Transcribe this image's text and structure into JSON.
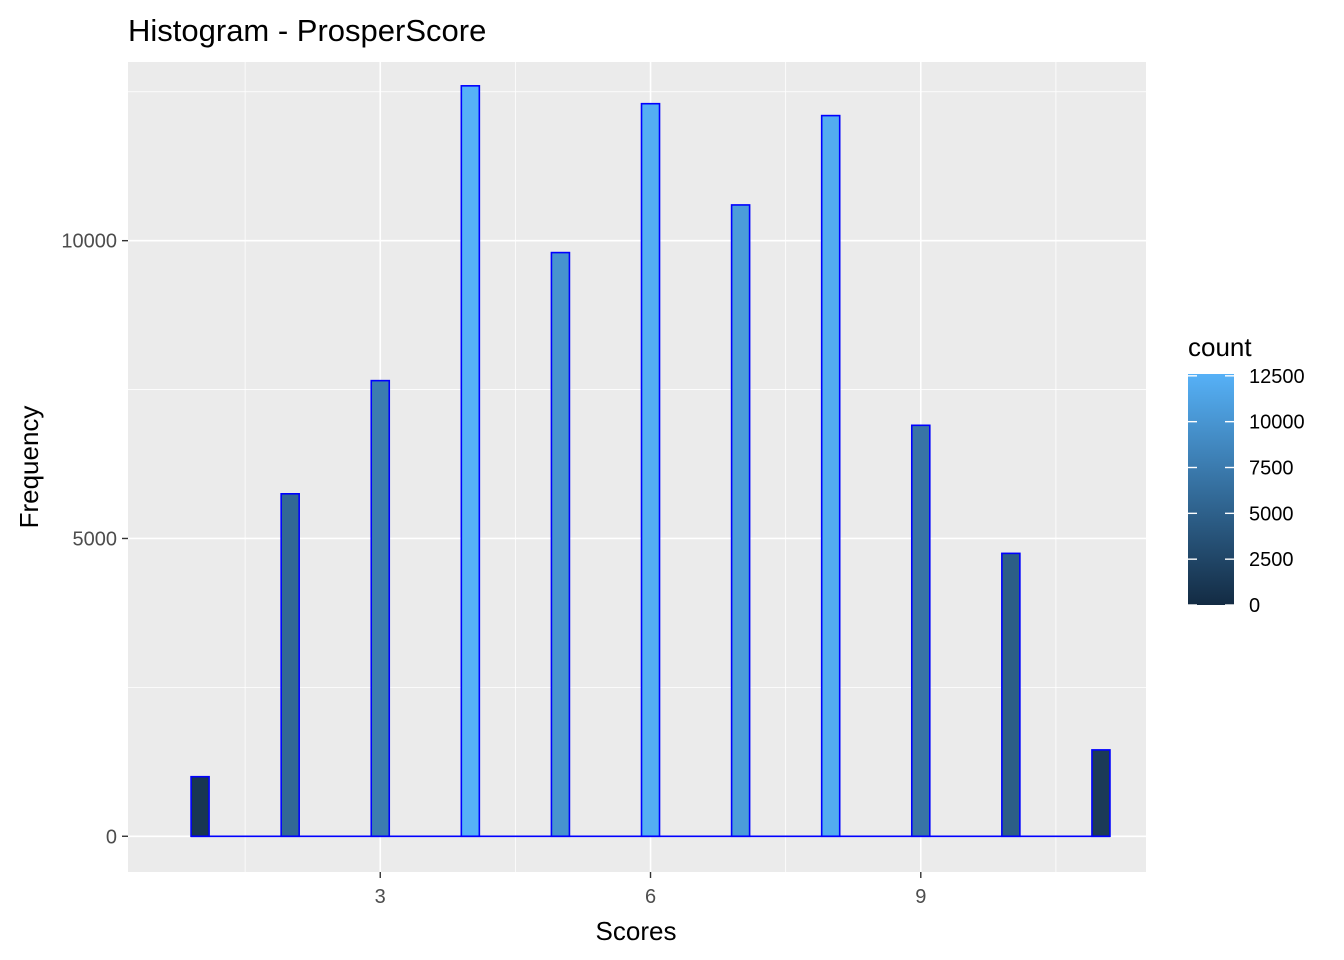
{
  "chart_data": {
    "type": "bar",
    "title": "Histogram - ProsperScore",
    "xlabel": "Scores",
    "ylabel": "Frequency",
    "x": [
      1,
      2,
      3,
      4,
      5,
      6,
      7,
      8,
      9,
      10,
      11
    ],
    "values": [
      1000,
      5750,
      7650,
      12600,
      9800,
      12300,
      10600,
      12100,
      6900,
      4750,
      1450
    ],
    "xlim": [
      0.2,
      11.5
    ],
    "ylim": [
      -600,
      13000
    ],
    "xticks": [
      3,
      6,
      9
    ],
    "xtick_labels": [
      "3",
      "6",
      "9"
    ],
    "yticks": [
      0,
      5000,
      10000
    ],
    "ytick_labels": [
      "0",
      "5000",
      "10000"
    ],
    "grid": true,
    "panel_background": "#ebebeb",
    "bar_outline_color": "#0000ff",
    "legend": {
      "title": "count",
      "position": "right",
      "range": [
        0,
        12600
      ],
      "ticks": [
        0,
        2500,
        5000,
        7500,
        10000,
        12500
      ],
      "tick_labels": [
        "0",
        "2500",
        "5000",
        "7500",
        "10000",
        "12500"
      ],
      "low_color": "#132b43",
      "high_color": "#56b1f7"
    }
  }
}
